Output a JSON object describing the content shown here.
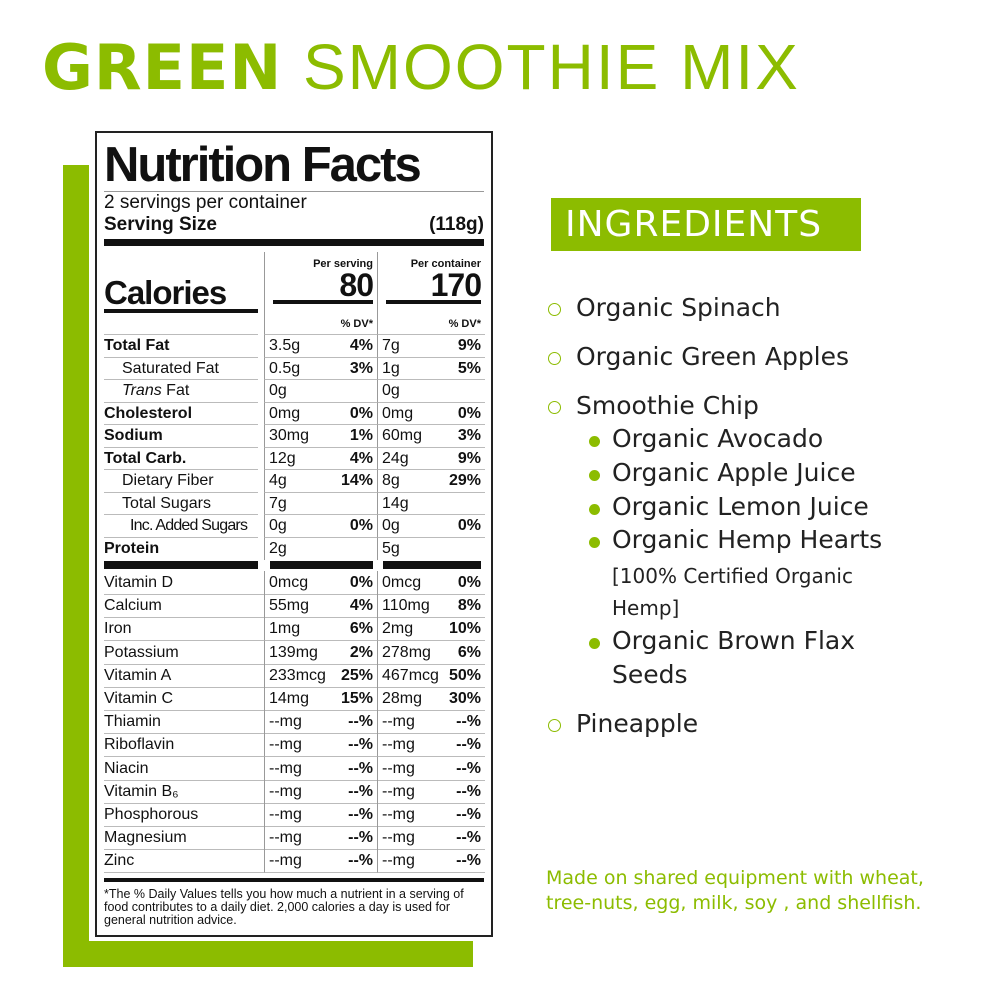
{
  "title": {
    "bold": "GREEN",
    "light": "SMOOTHIE MIX"
  },
  "brand_color": "#8cbc00",
  "nutrition": {
    "title": "Nutrition Facts",
    "servings": "2 servings per container",
    "serving_size_label": "Serving Size",
    "serving_size_value": "(118g)",
    "calories_label": "Calories",
    "per_serving_label": "Per serving",
    "per_container_label": "Per container",
    "calories_serving": "80",
    "calories_container": "170",
    "dv_label": "% DV*",
    "nutrients": [
      {
        "name": "Total Fat",
        "s": "3.5g",
        "sdv": "4%",
        "c": "7g",
        "cdv": "9%"
      },
      {
        "name": "Saturated Fat",
        "s": "0.5g",
        "sdv": "3%",
        "c": "1g",
        "cdv": "5%"
      },
      {
        "name": "Trans Fat",
        "s": "0g",
        "sdv": "",
        "c": "0g",
        "cdv": ""
      },
      {
        "name": "Cholesterol",
        "s": "0mg",
        "sdv": "0%",
        "c": "0mg",
        "cdv": "0%"
      },
      {
        "name": "Sodium",
        "s": "30mg",
        "sdv": "1%",
        "c": "60mg",
        "cdv": "3%"
      },
      {
        "name": "Total Carb.",
        "s": "12g",
        "sdv": "4%",
        "c": "24g",
        "cdv": "9%"
      },
      {
        "name": "Dietary Fiber",
        "s": "4g",
        "sdv": "14%",
        "c": "8g",
        "cdv": "29%"
      },
      {
        "name": "Total Sugars",
        "s": "7g",
        "sdv": "",
        "c": "14g",
        "cdv": ""
      },
      {
        "name": "Inc. Added Sugars",
        "s": "0g",
        "sdv": "0%",
        "c": "0g",
        "cdv": "0%"
      },
      {
        "name": "Protein",
        "s": "2g",
        "sdv": "",
        "c": "5g",
        "cdv": ""
      }
    ],
    "vitamins": [
      {
        "name": "Vitamin D",
        "s": "0mcg",
        "sdv": "0%",
        "c": "0mcg",
        "cdv": "0%"
      },
      {
        "name": "Calcium",
        "s": "55mg",
        "sdv": "4%",
        "c": "110mg",
        "cdv": "8%"
      },
      {
        "name": "Iron",
        "s": "1mg",
        "sdv": "6%",
        "c": "2mg",
        "cdv": "10%"
      },
      {
        "name": "Potassium",
        "s": "139mg",
        "sdv": "2%",
        "c": "278mg",
        "cdv": "6%"
      },
      {
        "name": "Vitamin A",
        "s": "233mcg",
        "sdv": "25%",
        "c": "467mcg",
        "cdv": "50%"
      },
      {
        "name": "Vitamin C",
        "s": "14mg",
        "sdv": "15%",
        "c": "28mg",
        "cdv": "30%"
      },
      {
        "name": "Thiamin",
        "s": "--mg",
        "sdv": "--%",
        "c": "--mg",
        "cdv": "--%"
      },
      {
        "name": "Riboflavin",
        "s": "--mg",
        "sdv": "--%",
        "c": "--mg",
        "cdv": "--%"
      },
      {
        "name": "Niacin",
        "s": "--mg",
        "sdv": "--%",
        "c": "--mg",
        "cdv": "--%"
      },
      {
        "name": "Vitamin B₆",
        "s": "--mg",
        "sdv": "--%",
        "c": "--mg",
        "cdv": "--%"
      },
      {
        "name": "Phosphorous",
        "s": "--mg",
        "sdv": "--%",
        "c": "--mg",
        "cdv": "--%"
      },
      {
        "name": "Magnesium",
        "s": "--mg",
        "sdv": "--%",
        "c": "--mg",
        "cdv": "--%"
      },
      {
        "name": "Zinc",
        "s": "--mg",
        "sdv": "--%",
        "c": "--mg",
        "cdv": "--%"
      }
    ],
    "footnote": "*The % Daily Values tells you how much a nutrient in a serving of food contributes to a daily diet. 2,000 calories a day is used for general nutrition advice."
  },
  "ingredients": {
    "heading": "INGREDIENTS",
    "items": [
      "Organic Spinach",
      "Organic Green Apples",
      "Smoothie Chip",
      "Pineapple"
    ],
    "sub_items": [
      "Organic Avocado",
      "Organic Apple Juice",
      "Organic Lemon Juice",
      "Organic Hemp Hearts",
      "[100% Certified Organic",
      "Hemp]",
      "Organic Brown Flax",
      "Seeds"
    ]
  },
  "allergen": "Made on shared equipment with wheat, tree-nuts, egg, milk, soy , and shellfish."
}
